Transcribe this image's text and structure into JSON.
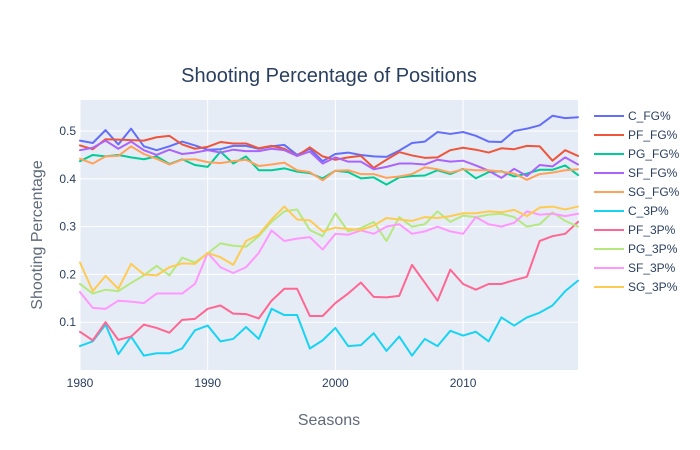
{
  "chart_data": {
    "type": "line",
    "title": "Shooting Percentage of Positions",
    "xlabel": "Seasons",
    "ylabel": "Shooting Percentage",
    "xlim": [
      1980,
      2019
    ],
    "ylim": [
      0.0,
      0.565
    ],
    "x_ticks": [
      1980,
      1990,
      2000,
      2010
    ],
    "y_ticks": [
      0.1,
      0.2,
      0.3,
      0.4,
      0.5
    ],
    "grid": true,
    "legend_position": "right",
    "x": [
      1980,
      1981,
      1982,
      1983,
      1984,
      1985,
      1986,
      1987,
      1988,
      1989,
      1990,
      1991,
      1992,
      1993,
      1994,
      1995,
      1996,
      1997,
      1998,
      1999,
      2000,
      2001,
      2002,
      2003,
      2004,
      2005,
      2006,
      2007,
      2008,
      2009,
      2010,
      2011,
      2012,
      2013,
      2014,
      2015,
      2016,
      2017,
      2018,
      2019
    ],
    "series": [
      {
        "name": "C_FG%",
        "color": "#636efa",
        "values": [
          0.48,
          0.475,
          0.502,
          0.472,
          0.505,
          0.468,
          0.46,
          0.468,
          0.478,
          0.47,
          0.461,
          0.462,
          0.469,
          0.469,
          0.463,
          0.468,
          0.471,
          0.45,
          0.463,
          0.437,
          0.452,
          0.455,
          0.45,
          0.447,
          0.446,
          0.459,
          0.475,
          0.478,
          0.498,
          0.494,
          0.498,
          0.49,
          0.478,
          0.477,
          0.5,
          0.505,
          0.512,
          0.532,
          0.527,
          0.529
        ]
      },
      {
        "name": "PF_FG%",
        "color": "#EF553B",
        "values": [
          0.47,
          0.462,
          0.483,
          0.482,
          0.481,
          0.48,
          0.487,
          0.49,
          0.472,
          0.463,
          0.467,
          0.477,
          0.474,
          0.474,
          0.464,
          0.469,
          0.463,
          0.448,
          0.466,
          0.447,
          0.44,
          0.445,
          0.448,
          0.423,
          0.44,
          0.456,
          0.449,
          0.444,
          0.445,
          0.46,
          0.465,
          0.461,
          0.455,
          0.464,
          0.462,
          0.469,
          0.468,
          0.438,
          0.46,
          0.448
        ]
      },
      {
        "name": "PG_FG%",
        "color": "#00cc96",
        "values": [
          0.437,
          0.45,
          0.447,
          0.45,
          0.445,
          0.441,
          0.447,
          0.431,
          0.441,
          0.429,
          0.425,
          0.457,
          0.432,
          0.447,
          0.418,
          0.418,
          0.422,
          0.415,
          0.412,
          0.401,
          0.417,
          0.414,
          0.401,
          0.403,
          0.388,
          0.403,
          0.406,
          0.407,
          0.418,
          0.41,
          0.421,
          0.401,
          0.414,
          0.416,
          0.405,
          0.411,
          0.419,
          0.419,
          0.428,
          0.408
        ]
      },
      {
        "name": "SF_FG%",
        "color": "#ab63fa",
        "values": [
          0.46,
          0.465,
          0.48,
          0.463,
          0.478,
          0.46,
          0.45,
          0.461,
          0.452,
          0.455,
          0.46,
          0.455,
          0.461,
          0.458,
          0.458,
          0.463,
          0.46,
          0.448,
          0.457,
          0.432,
          0.445,
          0.436,
          0.436,
          0.42,
          0.425,
          0.432,
          0.432,
          0.43,
          0.44,
          0.436,
          0.438,
          0.428,
          0.417,
          0.402,
          0.421,
          0.406,
          0.429,
          0.426,
          0.445,
          0.43
        ]
      },
      {
        "name": "SG_FG%",
        "color": "#FFA15A",
        "values": [
          0.442,
          0.432,
          0.447,
          0.448,
          0.468,
          0.452,
          0.442,
          0.43,
          0.44,
          0.441,
          0.435,
          0.433,
          0.437,
          0.44,
          0.427,
          0.43,
          0.434,
          0.418,
          0.414,
          0.397,
          0.417,
          0.418,
          0.41,
          0.41,
          0.402,
          0.405,
          0.41,
          0.424,
          0.42,
          0.413,
          0.42,
          0.418,
          0.418,
          0.415,
          0.411,
          0.398,
          0.41,
          0.413,
          0.418,
          0.42
        ]
      },
      {
        "name": "C_3P%",
        "color": "#19d3f3",
        "values": [
          0.05,
          0.06,
          0.095,
          0.033,
          0.07,
          0.03,
          0.035,
          0.035,
          0.045,
          0.083,
          0.093,
          0.06,
          0.065,
          0.09,
          0.065,
          0.128,
          0.115,
          0.115,
          0.045,
          0.062,
          0.088,
          0.05,
          0.052,
          0.077,
          0.04,
          0.07,
          0.03,
          0.065,
          0.05,
          0.082,
          0.072,
          0.08,
          0.06,
          0.11,
          0.093,
          0.11,
          0.12,
          0.135,
          0.165,
          0.187
        ]
      },
      {
        "name": "PF_3P%",
        "color": "#FF6692",
        "values": [
          0.08,
          0.062,
          0.1,
          0.063,
          0.07,
          0.095,
          0.088,
          0.078,
          0.105,
          0.107,
          0.128,
          0.135,
          0.118,
          0.117,
          0.108,
          0.145,
          0.17,
          0.17,
          0.113,
          0.113,
          0.14,
          0.16,
          0.183,
          0.153,
          0.152,
          0.155,
          0.22,
          0.183,
          0.145,
          0.21,
          0.18,
          0.168,
          0.18,
          0.18,
          0.188,
          0.195,
          0.27,
          0.28,
          0.285,
          0.31
        ]
      },
      {
        "name": "PG_3P%",
        "color": "#B6E880",
        "values": [
          0.18,
          0.16,
          0.168,
          0.165,
          0.182,
          0.198,
          0.218,
          0.198,
          0.235,
          0.225,
          0.244,
          0.265,
          0.26,
          0.258,
          0.28,
          0.31,
          0.332,
          0.336,
          0.293,
          0.28,
          0.328,
          0.29,
          0.297,
          0.31,
          0.27,
          0.32,
          0.3,
          0.305,
          0.332,
          0.31,
          0.323,
          0.32,
          0.325,
          0.327,
          0.32,
          0.3,
          0.305,
          0.33,
          0.312,
          0.3
        ]
      },
      {
        "name": "SF_3P%",
        "color": "#FF97FF",
        "values": [
          0.163,
          0.13,
          0.128,
          0.145,
          0.143,
          0.14,
          0.16,
          0.16,
          0.16,
          0.18,
          0.245,
          0.215,
          0.203,
          0.215,
          0.245,
          0.292,
          0.27,
          0.275,
          0.278,
          0.252,
          0.285,
          0.283,
          0.292,
          0.285,
          0.3,
          0.305,
          0.285,
          0.29,
          0.3,
          0.29,
          0.285,
          0.32,
          0.305,
          0.3,
          0.308,
          0.332,
          0.325,
          0.327,
          0.322,
          0.327
        ]
      },
      {
        "name": "SG_3P%",
        "color": "#FECB52",
        "values": [
          0.225,
          0.165,
          0.197,
          0.17,
          0.222,
          0.2,
          0.198,
          0.215,
          0.223,
          0.222,
          0.245,
          0.236,
          0.22,
          0.27,
          0.283,
          0.315,
          0.342,
          0.315,
          0.313,
          0.29,
          0.298,
          0.295,
          0.293,
          0.302,
          0.318,
          0.315,
          0.312,
          0.32,
          0.318,
          0.322,
          0.328,
          0.328,
          0.332,
          0.33,
          0.335,
          0.322,
          0.34,
          0.342,
          0.336,
          0.342
        ]
      }
    ]
  }
}
